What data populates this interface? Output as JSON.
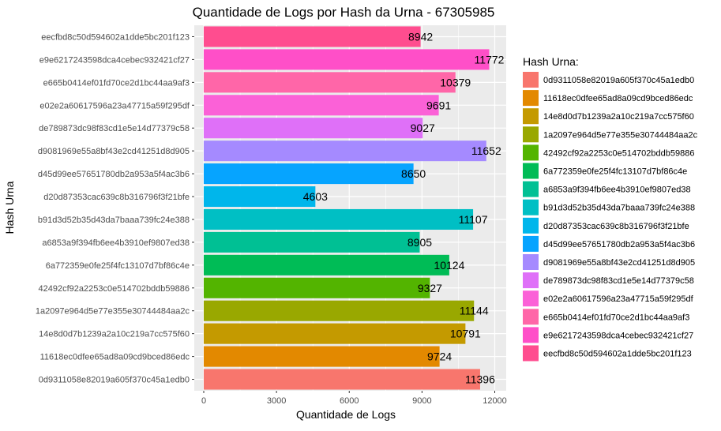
{
  "chart_data": {
    "type": "bar",
    "orientation": "horizontal",
    "title": "Quantidade de Logs por Hash da Urna - 67305985",
    "xlabel": "Quantidade de Logs",
    "ylabel": "Hash Urna",
    "xlim": [
      0,
      12000
    ],
    "x_ticks": [
      "0",
      "3000",
      "6000",
      "9000",
      "12000"
    ],
    "x_tick_values": [
      0,
      3000,
      6000,
      9000,
      12000
    ],
    "grid": true,
    "legend_title": "Hash Urna:",
    "legend_position": "right",
    "categories": [
      "0d9311058e82019a605f370c45a1edb0",
      "11618ec0dfee65ad8a09cd9bced86edc",
      "14e8d0d7b1239a2a10c219a7cc575f60",
      "1a2097e964d5e77e355e30744484aa2c",
      "42492cf92a2253c0e514702bddb59886",
      "6a772359e0fe25f4fc13107d7bf86c4e",
      "a6853a9f394fb6ee4b3910ef9807ed38",
      "b91d3d52b35d43da7baaa739fc24e388",
      "d20d87353cac639c8b316796f3f21bfe",
      "d45d99ee57651780db2a953a5f4ac3b6",
      "d9081969e55a8bf43e2cd41251d8d905",
      "de789873dc98f83cd1e5e14d77379c58",
      "e02e2a60617596a23a47715a59f295df",
      "e665b0414ef01fd70ce2d1bc44aa9af3",
      "e9e6217243598dca4cebec932421cf27",
      "eecfbd8c50d594602a1dde5bc201f123"
    ],
    "values": [
      11396,
      9724,
      10791,
      11144,
      9327,
      10124,
      8905,
      11107,
      4603,
      8650,
      11652,
      9027,
      9691,
      10379,
      11772,
      8942
    ],
    "data_labels": [
      "11396",
      "9724",
      "10791",
      "11144",
      "9327",
      "10124",
      "8905",
      "11107",
      "4603",
      "8650",
      "11652",
      "9027",
      "9691",
      "10379",
      "11772",
      "8942"
    ],
    "colors": [
      "#F8766D",
      "#E38900",
      "#C49A00",
      "#99A800",
      "#53B400",
      "#00BC56",
      "#00C094",
      "#00BFC4",
      "#00B6EB",
      "#06A4FF",
      "#A58AFF",
      "#DF70F8",
      "#FB61D7",
      "#FF66A8",
      "#FF4FC8",
      "#FF4D8F"
    ]
  }
}
